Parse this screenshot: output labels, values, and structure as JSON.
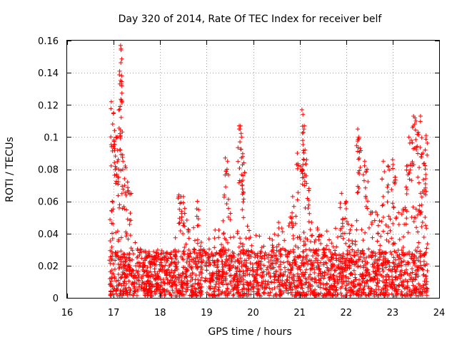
{
  "chart_data": {
    "type": "scatter",
    "title": "Day 320 of 2014, Rate Of TEC Index for receiver belf",
    "xlabel": "GPS time / hours",
    "ylabel": "ROTI / TECUs",
    "xlim": [
      16,
      24
    ],
    "ylim": [
      0,
      0.16
    ],
    "x_ticks": [
      16,
      17,
      18,
      19,
      20,
      21,
      22,
      23,
      24
    ],
    "y_ticks": [
      0,
      0.02,
      0.04,
      0.06,
      0.08,
      0.1,
      0.12,
      0.14,
      0.16
    ],
    "x_tick_labels": [
      "16",
      "17",
      "18",
      "19",
      "20",
      "21",
      "22",
      "23",
      "24"
    ],
    "y_tick_labels": [
      "0",
      "0.02",
      "0.04",
      "0.06",
      "0.08",
      "0.1",
      "0.12",
      "0.14",
      "0.16"
    ],
    "grid": true,
    "marker": "+",
    "series": [
      {
        "name": "ROTI",
        "color": "#ff0000",
        "x_range": [
          16.9,
          23.75
        ],
        "baseline_min": 0.001,
        "baseline_max": 0.03,
        "envelope": [
          [
            16.9,
            0.05
          ],
          [
            17.3,
            0.04
          ],
          [
            17.8,
            0.025
          ],
          [
            18.5,
            0.05
          ],
          [
            19.0,
            0.035
          ],
          [
            19.5,
            0.055
          ],
          [
            20.0,
            0.04
          ],
          [
            20.5,
            0.045
          ],
          [
            21.0,
            0.055
          ],
          [
            21.5,
            0.04
          ],
          [
            22.0,
            0.045
          ],
          [
            22.5,
            0.055
          ],
          [
            23.0,
            0.05
          ],
          [
            23.5,
            0.06
          ],
          [
            23.75,
            0.05
          ]
        ],
        "peaks": [
          {
            "x": 16.95,
            "y": 0.122
          },
          {
            "x": 17.0,
            "y": 0.115
          },
          {
            "x": 17.02,
            "y": 0.104
          },
          {
            "x": 17.05,
            "y": 0.1
          },
          {
            "x": 17.08,
            "y": 0.1
          },
          {
            "x": 17.1,
            "y": 0.086
          },
          {
            "x": 17.15,
            "y": 0.157
          },
          {
            "x": 17.16,
            "y": 0.155
          },
          {
            "x": 17.13,
            "y": 0.141
          },
          {
            "x": 17.17,
            "y": 0.133
          },
          {
            "x": 17.14,
            "y": 0.119
          },
          {
            "x": 17.2,
            "y": 0.085
          },
          {
            "x": 17.25,
            "y": 0.082
          },
          {
            "x": 17.3,
            "y": 0.072
          },
          {
            "x": 16.97,
            "y": 0.06
          },
          {
            "x": 17.35,
            "y": 0.065
          },
          {
            "x": 18.4,
            "y": 0.064
          },
          {
            "x": 18.45,
            "y": 0.063
          },
          {
            "x": 18.5,
            "y": 0.063
          },
          {
            "x": 18.8,
            "y": 0.06
          },
          {
            "x": 19.4,
            "y": 0.087
          },
          {
            "x": 19.45,
            "y": 0.085
          },
          {
            "x": 19.7,
            "y": 0.107
          },
          {
            "x": 19.72,
            "y": 0.105
          },
          {
            "x": 19.75,
            "y": 0.1
          },
          {
            "x": 19.8,
            "y": 0.084
          },
          {
            "x": 19.78,
            "y": 0.076
          },
          {
            "x": 20.85,
            "y": 0.063
          },
          {
            "x": 21.05,
            "y": 0.117
          },
          {
            "x": 21.07,
            "y": 0.114
          },
          {
            "x": 21.1,
            "y": 0.107
          },
          {
            "x": 21.08,
            "y": 0.103
          },
          {
            "x": 20.95,
            "y": 0.09
          },
          {
            "x": 21.15,
            "y": 0.086
          },
          {
            "x": 21.2,
            "y": 0.068
          },
          {
            "x": 21.9,
            "y": 0.065
          },
          {
            "x": 22.0,
            "y": 0.06
          },
          {
            "x": 22.25,
            "y": 0.105
          },
          {
            "x": 22.27,
            "y": 0.1
          },
          {
            "x": 22.3,
            "y": 0.093
          },
          {
            "x": 22.4,
            "y": 0.085
          },
          {
            "x": 22.45,
            "y": 0.08
          },
          {
            "x": 22.8,
            "y": 0.085
          },
          {
            "x": 22.9,
            "y": 0.082
          },
          {
            "x": 23.0,
            "y": 0.086
          },
          {
            "x": 23.05,
            "y": 0.075
          },
          {
            "x": 23.35,
            "y": 0.1
          },
          {
            "x": 23.4,
            "y": 0.098
          },
          {
            "x": 23.45,
            "y": 0.113
          },
          {
            "x": 23.5,
            "y": 0.11
          },
          {
            "x": 23.55,
            "y": 0.103
          },
          {
            "x": 23.6,
            "y": 0.113
          },
          {
            "x": 23.65,
            "y": 0.09
          },
          {
            "x": 23.7,
            "y": 0.092
          },
          {
            "x": 23.72,
            "y": 0.101
          },
          {
            "x": 23.3,
            "y": 0.082
          },
          {
            "x": 23.6,
            "y": 0.065
          }
        ]
      }
    ]
  }
}
